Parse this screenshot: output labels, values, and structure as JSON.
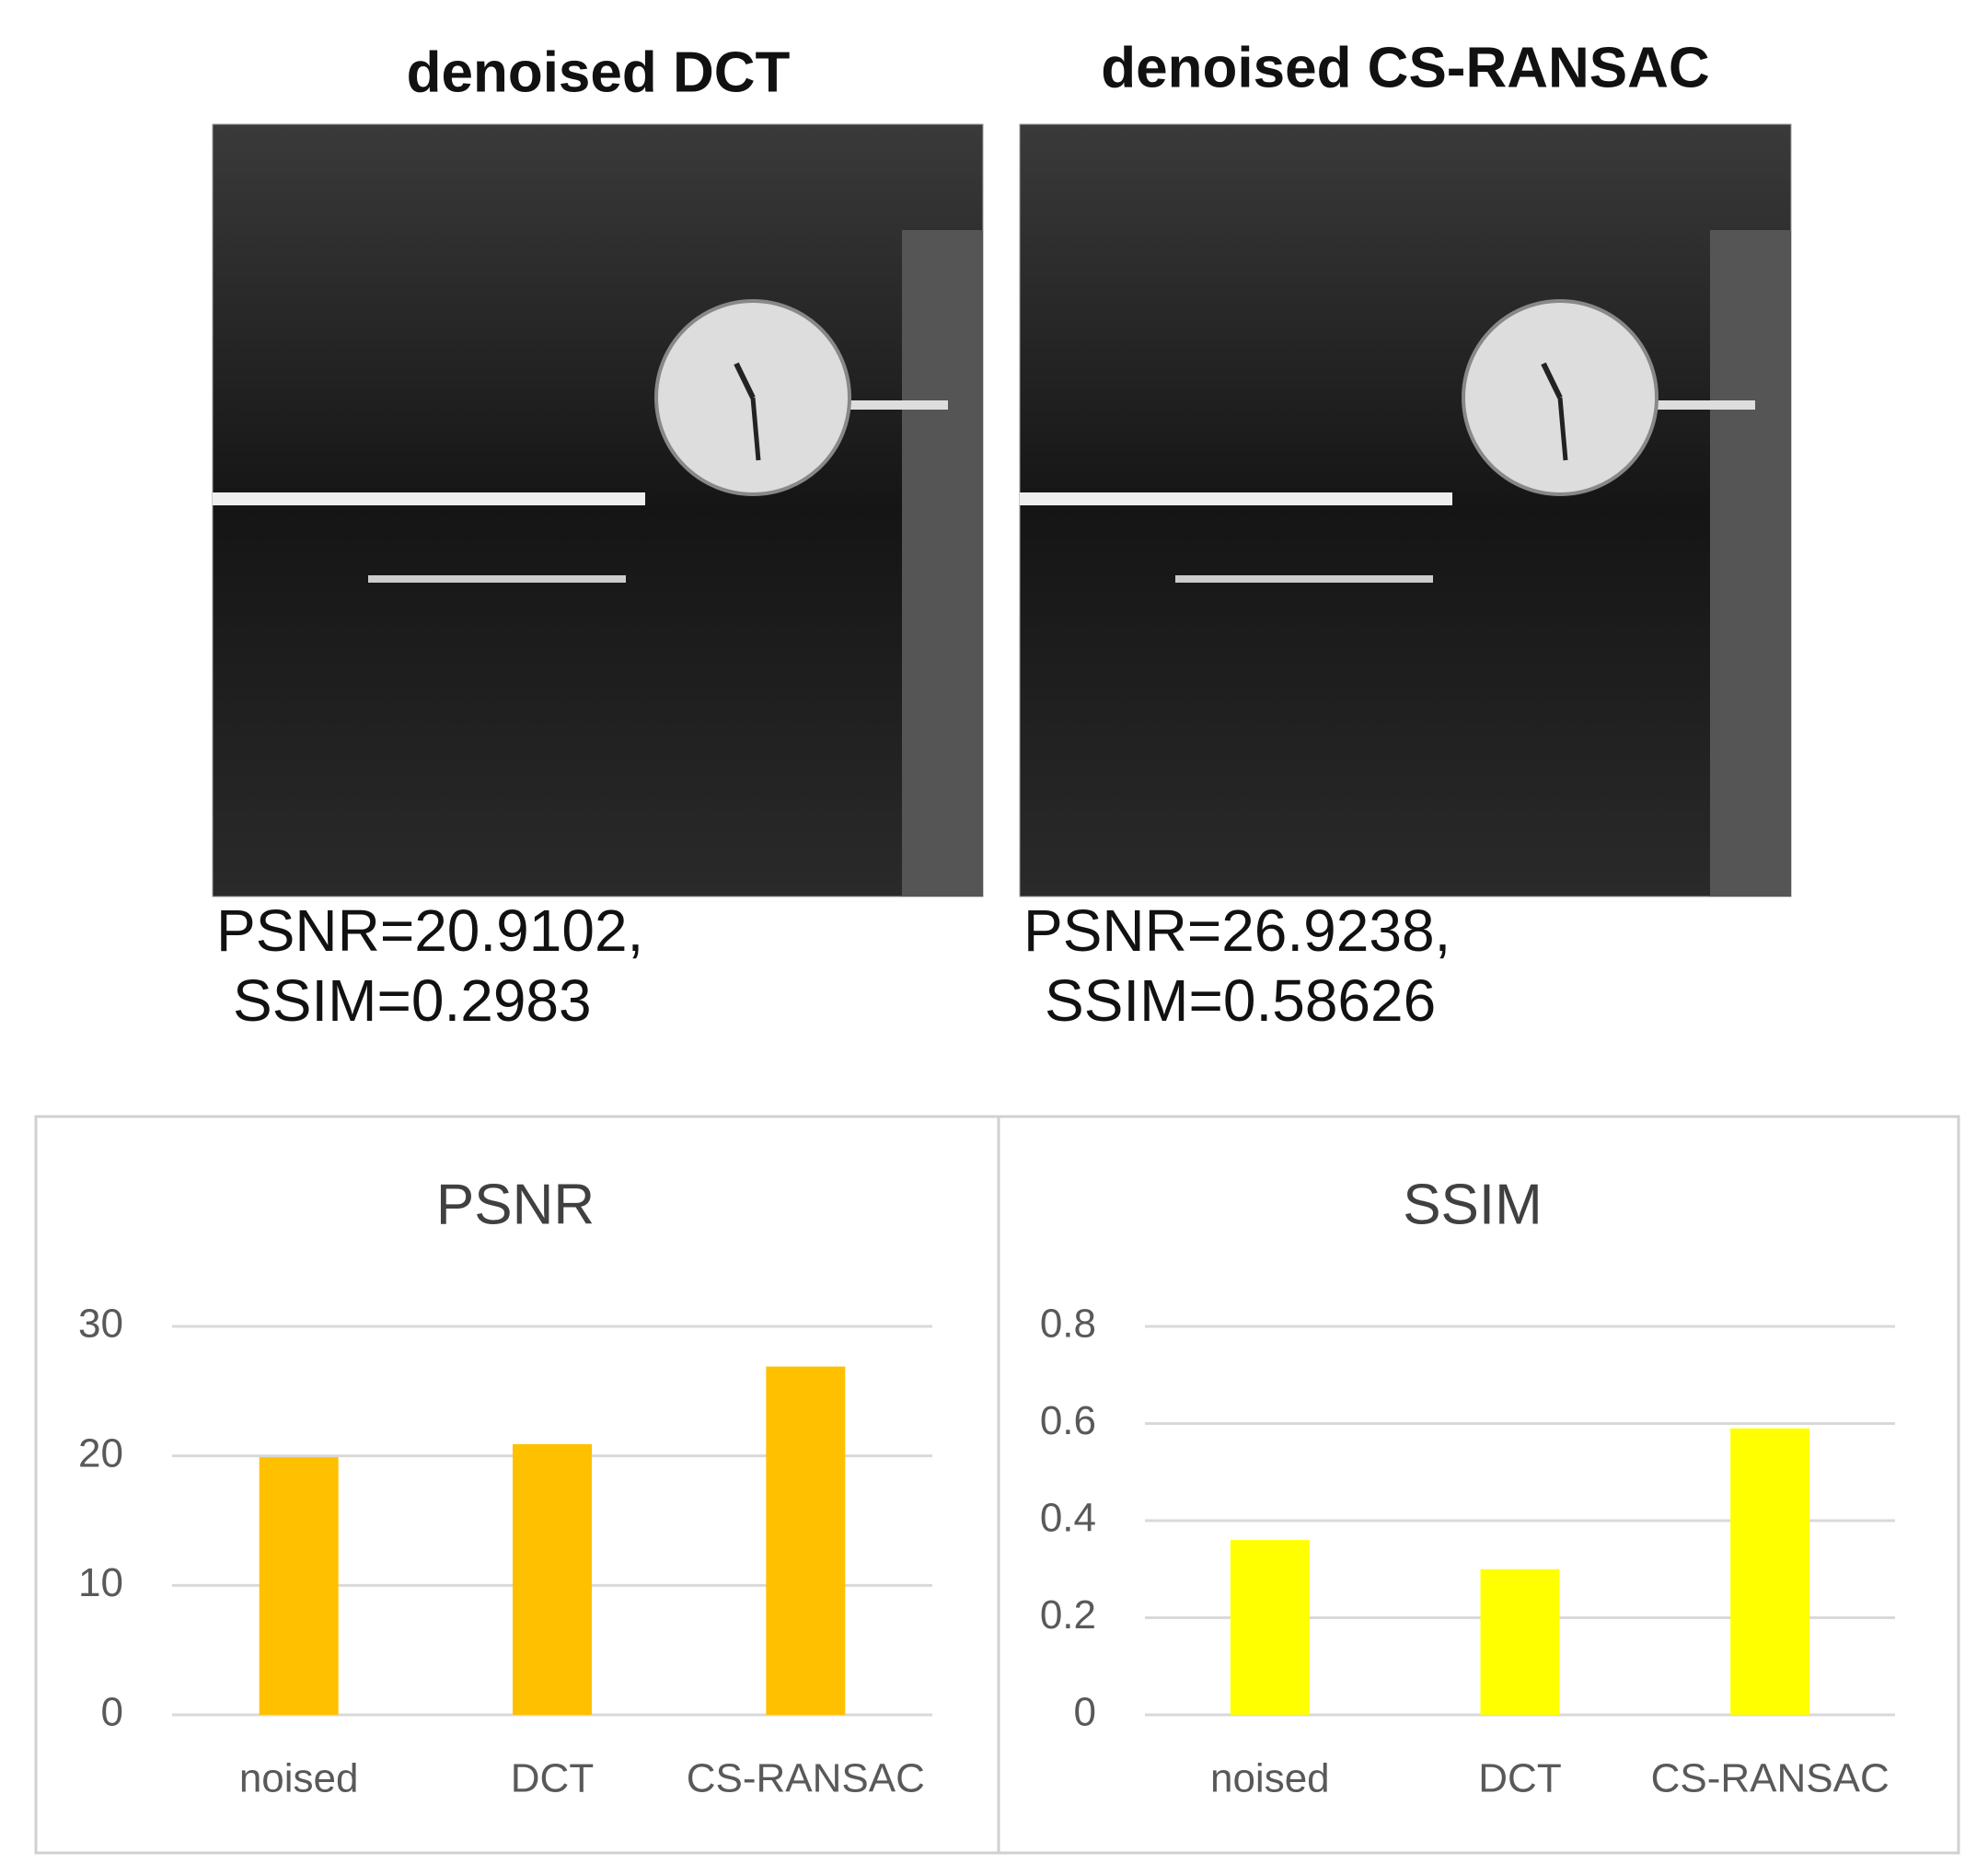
{
  "panels": [
    {
      "title": "denoised DCT",
      "caption": [
        "PSNR=20.9102,",
        "SSIM=0.2983"
      ]
    },
    {
      "title": "denoised CS-RANSAC",
      "caption": [
        "PSNR=26.9238,",
        "SSIM=0.58626"
      ]
    }
  ],
  "chart_data": [
    {
      "type": "bar",
      "title": "PSNR",
      "categories": [
        "noised",
        "DCT",
        "CS-RANSAC"
      ],
      "values": [
        19.9,
        20.9,
        26.9
      ],
      "color": "#ffc000",
      "ylim": [
        0,
        30
      ],
      "yticks": [
        0,
        10,
        20,
        30
      ],
      "grid": true
    },
    {
      "type": "bar",
      "title": "SSIM",
      "categories": [
        "noised",
        "DCT",
        "CS-RANSAC"
      ],
      "values": [
        0.36,
        0.3,
        0.59
      ],
      "color": "#ffff00",
      "ylim": [
        0,
        0.8
      ],
      "yticks": [
        0,
        0.2,
        0.4,
        0.6,
        0.8
      ],
      "grid": true
    }
  ]
}
